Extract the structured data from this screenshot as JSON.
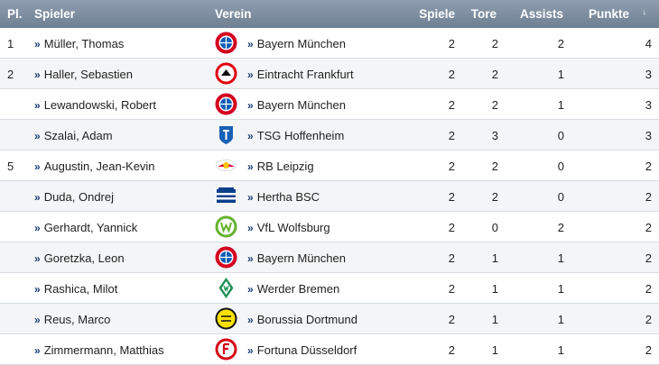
{
  "header": {
    "pl": "Pl.",
    "spieler": "Spieler",
    "verein": "Verein",
    "spiele": "Spiele",
    "tore": "Tore",
    "assists": "Assists",
    "punkte": "Punkte",
    "sort_icon": "↓"
  },
  "rows": [
    {
      "pl": "1",
      "name": "Müller, Thomas",
      "club": "Bayern München",
      "spiele": "2",
      "tore": "2",
      "assists": "2",
      "punkte": "4",
      "logo": "fcb-logo-icon"
    },
    {
      "pl": "2",
      "name": "Haller, Sebastien",
      "club": "Eintracht Frankfurt",
      "spiele": "2",
      "tore": "2",
      "assists": "1",
      "punkte": "3",
      "logo": "sge-logo-icon"
    },
    {
      "pl": "",
      "name": "Lewandowski, Robert",
      "club": "Bayern München",
      "spiele": "2",
      "tore": "2",
      "assists": "1",
      "punkte": "3",
      "logo": "fcb-logo-icon"
    },
    {
      "pl": "",
      "name": "Szalai, Adam",
      "club": "TSG Hoffenheim",
      "spiele": "2",
      "tore": "3",
      "assists": "0",
      "punkte": "3",
      "logo": "tsg-logo-icon"
    },
    {
      "pl": "5",
      "name": "Augustin, Jean-Kevin",
      "club": "RB Leipzig",
      "spiele": "2",
      "tore": "2",
      "assists": "0",
      "punkte": "2",
      "logo": "rbl-logo-icon"
    },
    {
      "pl": "",
      "name": "Duda, Ondrej",
      "club": "Hertha BSC",
      "spiele": "2",
      "tore": "2",
      "assists": "0",
      "punkte": "2",
      "logo": "bsc-logo-icon"
    },
    {
      "pl": "",
      "name": "Gerhardt, Yannick",
      "club": "VfL Wolfsburg",
      "spiele": "2",
      "tore": "0",
      "assists": "2",
      "punkte": "2",
      "logo": "wob-logo-icon"
    },
    {
      "pl": "",
      "name": "Goretzka, Leon",
      "club": "Bayern München",
      "spiele": "2",
      "tore": "1",
      "assists": "1",
      "punkte": "2",
      "logo": "fcb-logo-icon"
    },
    {
      "pl": "",
      "name": "Rashica, Milot",
      "club": "Werder Bremen",
      "spiele": "2",
      "tore": "1",
      "assists": "1",
      "punkte": "2",
      "logo": "svw-logo-icon"
    },
    {
      "pl": "",
      "name": "Reus, Marco",
      "club": "Borussia Dortmund",
      "spiele": "2",
      "tore": "1",
      "assists": "1",
      "punkte": "2",
      "logo": "bvb-logo-icon"
    },
    {
      "pl": "",
      "name": "Zimmermann, Matthias",
      "club": "Fortuna Düsseldorf",
      "spiele": "2",
      "tore": "1",
      "assists": "1",
      "punkte": "2",
      "logo": "f95-logo-icon"
    }
  ],
  "colors": {
    "header_bg": "#7d8ea1",
    "link_arrow": "#1a3e73",
    "row_alt": "#f4f5f6"
  }
}
